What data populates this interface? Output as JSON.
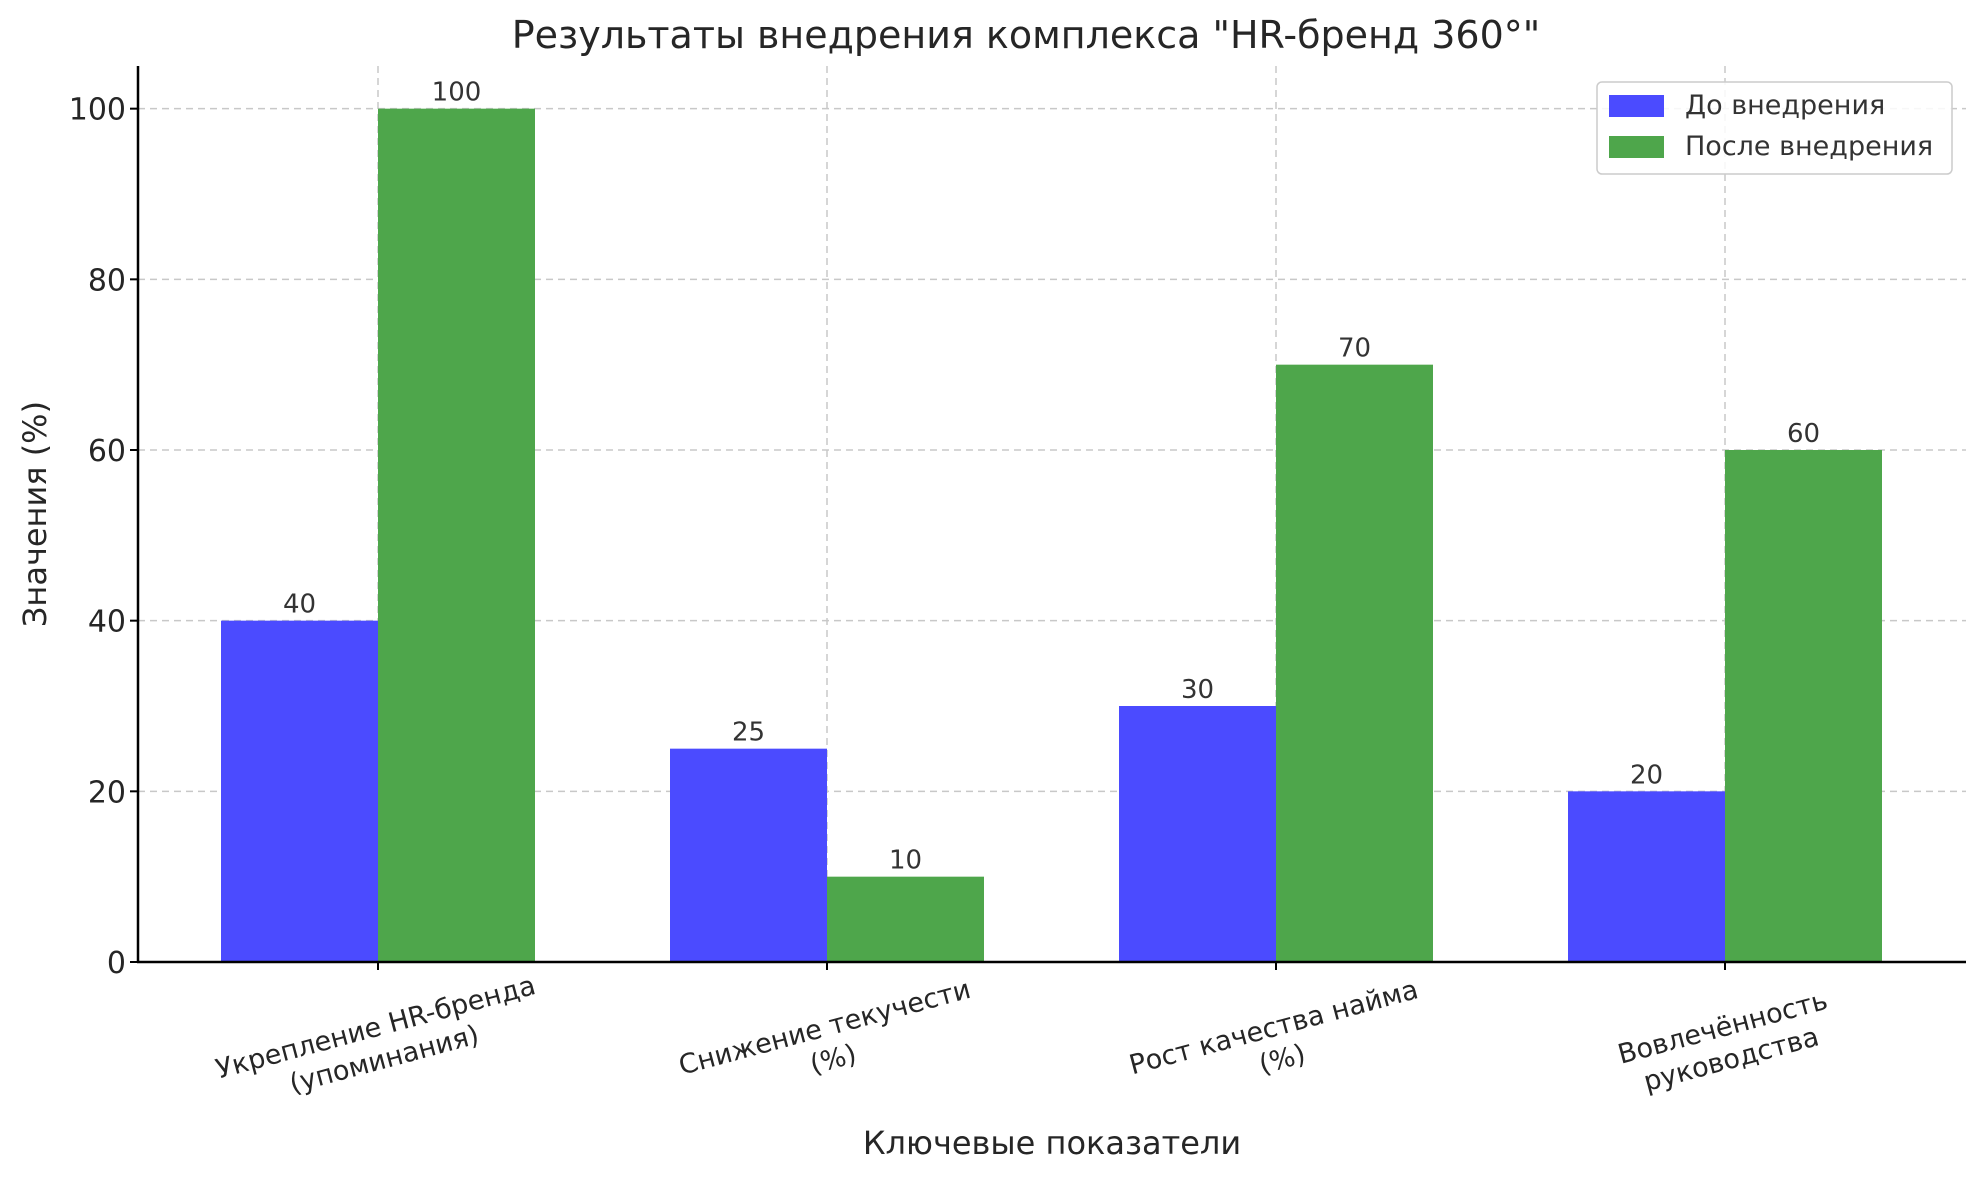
{
  "chart_data": {
    "type": "bar",
    "title": "Результаты внедрения комплекса \"HR-бренд 360°\"",
    "xlabel": "Ключевые показатели",
    "ylabel": "Значения (%)",
    "ylim": [
      0,
      105
    ],
    "yticks": [
      0,
      20,
      40,
      60,
      80,
      100
    ],
    "grid": true,
    "legend_position": "top-right",
    "categories": [
      [
        "Укрепление HR-бренда",
        "(упоминания)"
      ],
      [
        "Снижение текучести",
        "(%)"
      ],
      [
        "Рост качества найма",
        "(%)"
      ],
      [
        "Вовлечённость",
        "руководства"
      ]
    ],
    "series": [
      {
        "name": "До внедрения",
        "color": "#4b4bff",
        "values": [
          40,
          25,
          30,
          20
        ]
      },
      {
        "name": "После внедрения",
        "color": "#4ea64b",
        "values": [
          100,
          10,
          70,
          60
        ]
      }
    ]
  }
}
